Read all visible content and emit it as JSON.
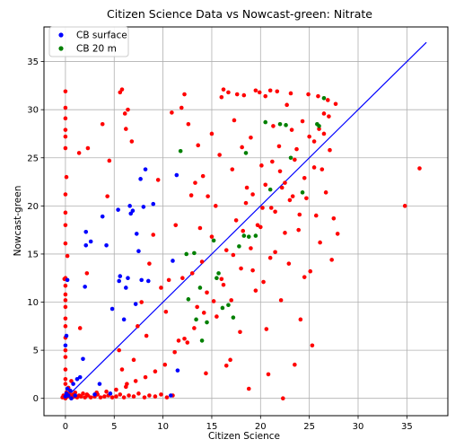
{
  "chart_data": {
    "type": "scatter",
    "title": "Citizen Science Data vs Nowcast-green: Nitrate",
    "xlabel": "Citizen Science",
    "ylabel": "Nowcast-green",
    "xlim": [
      -2.2,
      39.2
    ],
    "ylim": [
      -1.8,
      38.6
    ],
    "xticks": [
      0,
      5,
      10,
      15,
      20,
      25,
      30,
      35
    ],
    "yticks": [
      0,
      5,
      10,
      15,
      20,
      25,
      30,
      35
    ],
    "xtick_labels": [
      "0",
      "5",
      "10",
      "15",
      "20",
      "25",
      "30",
      "35"
    ],
    "ytick_labels": [
      "0",
      "5",
      "10",
      "15",
      "20",
      "25",
      "30",
      "35"
    ],
    "grid": true,
    "legend_position": "top-left",
    "series": [
      {
        "name": "CB surface",
        "color": "#0000ff",
        "marker": "dot",
        "points": [
          [
            0.0,
            0.2
          ],
          [
            0.1,
            0.5
          ],
          [
            0.2,
            1.0
          ],
          [
            0.3,
            0.3
          ],
          [
            0.5,
            0.8
          ],
          [
            0.0,
            5.5
          ],
          [
            0.1,
            6.5
          ],
          [
            0.2,
            12.3
          ],
          [
            0.8,
            1.5
          ],
          [
            1.0,
            0.3
          ],
          [
            1.5,
            2.2
          ],
          [
            1.8,
            4.1
          ],
          [
            2.0,
            11.6
          ],
          [
            2.1,
            15.9
          ],
          [
            2.1,
            17.3
          ],
          [
            2.6,
            16.3
          ],
          [
            3.0,
            0.4
          ],
          [
            3.8,
            18.9
          ],
          [
            4.2,
            15.9
          ],
          [
            4.6,
            0.5
          ],
          [
            5.4,
            19.6
          ],
          [
            5.5,
            12.2
          ],
          [
            5.6,
            12.7
          ],
          [
            6.2,
            11.5
          ],
          [
            6.4,
            12.5
          ],
          [
            6.7,
            19.2
          ],
          [
            6.9,
            19.5
          ],
          [
            6.6,
            20.0
          ],
          [
            7.3,
            17.1
          ],
          [
            7.5,
            15.3
          ],
          [
            7.7,
            22.8
          ],
          [
            7.8,
            12.3
          ],
          [
            8.0,
            19.9
          ],
          [
            8.2,
            23.8
          ],
          [
            8.5,
            12.2
          ],
          [
            9.0,
            20.2
          ],
          [
            10.8,
            0.3
          ],
          [
            11.0,
            14.3
          ],
          [
            11.4,
            23.2
          ],
          [
            11.5,
            2.9
          ],
          [
            7.2,
            9.8
          ],
          [
            6.0,
            8.2
          ],
          [
            4.8,
            9.3
          ],
          [
            3.5,
            1.5
          ],
          [
            0.6,
            0.0
          ],
          [
            1.2,
            2.0
          ]
        ]
      },
      {
        "name": "CB 20 m",
        "color": "#008000",
        "marker": "dot",
        "points": [
          [
            11.8,
            25.7
          ],
          [
            12.4,
            15.0
          ],
          [
            12.6,
            10.3
          ],
          [
            13.2,
            15.1
          ],
          [
            13.4,
            8.2
          ],
          [
            14.0,
            6.0
          ],
          [
            14.5,
            7.9
          ],
          [
            15.2,
            16.4
          ],
          [
            15.5,
            12.5
          ],
          [
            15.7,
            13.0
          ],
          [
            16.1,
            9.4
          ],
          [
            16.7,
            9.7
          ],
          [
            17.2,
            8.4
          ],
          [
            18.3,
            16.9
          ],
          [
            18.5,
            25.5
          ],
          [
            18.8,
            16.8
          ],
          [
            20.5,
            28.7
          ],
          [
            21.0,
            21.7
          ],
          [
            22.0,
            28.5
          ],
          [
            22.6,
            28.4
          ],
          [
            23.1,
            25.0
          ],
          [
            25.8,
            28.5
          ],
          [
            26.0,
            28.3
          ],
          [
            26.5,
            31.2
          ],
          [
            24.3,
            21.4
          ],
          [
            19.5,
            16.9
          ],
          [
            17.8,
            15.8
          ],
          [
            13.8,
            11.5
          ]
        ]
      },
      {
        "name": "",
        "color": "#ff0000",
        "marker": "dot",
        "points": [
          [
            -0.3,
            0.1
          ],
          [
            -0.2,
            0.3
          ],
          [
            0.0,
            0.0
          ],
          [
            0.1,
            0.6
          ],
          [
            0.2,
            0.2
          ],
          [
            0.3,
            1.1
          ],
          [
            0.4,
            0.5
          ],
          [
            0.5,
            0.2
          ],
          [
            0.6,
            1.8
          ],
          [
            0.7,
            0.1
          ],
          [
            0.8,
            0.4
          ],
          [
            0.9,
            0.2
          ],
          [
            1.0,
            0.6
          ],
          [
            1.2,
            0.1
          ],
          [
            1.4,
            0.3
          ],
          [
            1.6,
            0.2
          ],
          [
            1.8,
            0.5
          ],
          [
            2.0,
            0.1
          ],
          [
            2.3,
            0.3
          ],
          [
            2.6,
            0.1
          ],
          [
            3.0,
            0.2
          ],
          [
            3.3,
            0.4
          ],
          [
            3.6,
            0.1
          ],
          [
            4.0,
            0.2
          ],
          [
            4.4,
            0.3
          ],
          [
            4.8,
            0.1
          ],
          [
            5.2,
            0.2
          ],
          [
            5.6,
            0.4
          ],
          [
            6.0,
            0.1
          ],
          [
            6.5,
            0.3
          ],
          [
            7.0,
            0.2
          ],
          [
            7.5,
            0.5
          ],
          [
            8.1,
            0.1
          ],
          [
            8.6,
            0.3
          ],
          [
            9.2,
            0.2
          ],
          [
            9.8,
            0.4
          ],
          [
            10.4,
            0.1
          ],
          [
            11.0,
            0.3
          ],
          [
            0.0,
            1.5
          ],
          [
            0.0,
            2.0
          ],
          [
            0.0,
            3.0
          ],
          [
            0.0,
            4.3
          ],
          [
            0.0,
            5.0
          ],
          [
            0.0,
            6.3
          ],
          [
            0.0,
            7.5
          ],
          [
            0.0,
            8.3
          ],
          [
            0.0,
            9.5
          ],
          [
            0.0,
            10.2
          ],
          [
            0.0,
            10.8
          ],
          [
            0.0,
            11.7
          ],
          [
            0.0,
            12.5
          ],
          [
            0.0,
            16.1
          ],
          [
            0.0,
            18.0
          ],
          [
            0.0,
            19.3
          ],
          [
            0.0,
            21.2
          ],
          [
            0.0,
            26.0
          ],
          [
            0.0,
            27.2
          ],
          [
            0.0,
            27.9
          ],
          [
            0.0,
            29.1
          ],
          [
            0.0,
            30.2
          ],
          [
            0.0,
            31.9
          ],
          [
            -0.1,
            12.4
          ],
          [
            0.2,
            14.8
          ],
          [
            0.1,
            23.0
          ],
          [
            1.5,
            7.3
          ],
          [
            1.4,
            25.5
          ],
          [
            2.3,
            26.0
          ],
          [
            2.2,
            13.0
          ],
          [
            3.8,
            28.5
          ],
          [
            4.5,
            24.7
          ],
          [
            4.3,
            21.0
          ],
          [
            5.6,
            31.8
          ],
          [
            5.8,
            32.1
          ],
          [
            6.1,
            29.6
          ],
          [
            6.2,
            28.0
          ],
          [
            6.8,
            26.7
          ],
          [
            6.4,
            30.0
          ],
          [
            5.5,
            5.0
          ],
          [
            5.8,
            3.0
          ],
          [
            6.3,
            1.5
          ],
          [
            7.0,
            4.0
          ],
          [
            7.4,
            7.5
          ],
          [
            7.8,
            10.0
          ],
          [
            8.3,
            6.5
          ],
          [
            8.6,
            14.0
          ],
          [
            9.0,
            17.0
          ],
          [
            9.5,
            22.7
          ],
          [
            9.8,
            11.5
          ],
          [
            10.3,
            9.0
          ],
          [
            10.6,
            12.3
          ],
          [
            10.9,
            29.7
          ],
          [
            11.3,
            18.0
          ],
          [
            11.6,
            6.0
          ],
          [
            11.9,
            30.2
          ],
          [
            12.2,
            31.6
          ],
          [
            12.6,
            28.5
          ],
          [
            12.9,
            21.1
          ],
          [
            13.3,
            22.4
          ],
          [
            13.6,
            26.3
          ],
          [
            13.8,
            17.7
          ],
          [
            14.1,
            23.1
          ],
          [
            14.4,
            2.6
          ],
          [
            14.6,
            21.0
          ],
          [
            15.0,
            27.5
          ],
          [
            15.4,
            20.0
          ],
          [
            15.8,
            25.3
          ],
          [
            16.0,
            31.3
          ],
          [
            16.2,
            32.1
          ],
          [
            16.5,
            3.4
          ],
          [
            16.7,
            31.8
          ],
          [
            16.9,
            4.0
          ],
          [
            17.1,
            23.8
          ],
          [
            17.3,
            28.9
          ],
          [
            17.6,
            31.6
          ],
          [
            17.9,
            6.9
          ],
          [
            18.1,
            26.1
          ],
          [
            18.3,
            31.5
          ],
          [
            18.6,
            21.9
          ],
          [
            18.8,
            1.0
          ],
          [
            19.0,
            27.1
          ],
          [
            19.2,
            13.3
          ],
          [
            19.5,
            32.0
          ],
          [
            19.7,
            18.0
          ],
          [
            19.9,
            31.8
          ],
          [
            20.1,
            24.2
          ],
          [
            20.3,
            12.1
          ],
          [
            20.5,
            31.4
          ],
          [
            20.6,
            7.2
          ],
          [
            20.8,
            2.5
          ],
          [
            21.0,
            32.0
          ],
          [
            21.1,
            19.8
          ],
          [
            21.3,
            28.3
          ],
          [
            21.5,
            15.2
          ],
          [
            21.7,
            31.9
          ],
          [
            21.9,
            26.2
          ],
          [
            22.1,
            10.2
          ],
          [
            22.3,
            0.0
          ],
          [
            22.5,
            22.4
          ],
          [
            22.7,
            30.5
          ],
          [
            22.9,
            14.0
          ],
          [
            23.1,
            31.7
          ],
          [
            23.3,
            21.0
          ],
          [
            23.5,
            3.5
          ],
          [
            23.7,
            25.9
          ],
          [
            23.9,
            17.5
          ],
          [
            24.1,
            8.2
          ],
          [
            24.3,
            28.8
          ],
          [
            24.5,
            12.6
          ],
          [
            24.7,
            20.8
          ],
          [
            24.9,
            31.6
          ],
          [
            25.1,
            13.2
          ],
          [
            25.3,
            5.5
          ],
          [
            25.5,
            26.7
          ],
          [
            25.7,
            19.0
          ],
          [
            25.9,
            31.4
          ],
          [
            26.1,
            16.2
          ],
          [
            26.3,
            23.8
          ],
          [
            26.5,
            29.6
          ],
          [
            26.7,
            21.4
          ],
          [
            26.9,
            31.0
          ],
          [
            27.1,
            25.8
          ],
          [
            27.3,
            14.4
          ],
          [
            27.5,
            18.7
          ],
          [
            27.7,
            30.6
          ],
          [
            27.9,
            17.1
          ],
          [
            34.8,
            20.0
          ],
          [
            36.3,
            23.9
          ],
          [
            12.0,
            12.5
          ],
          [
            12.5,
            5.8
          ],
          [
            13.0,
            13.0
          ],
          [
            13.5,
            9.5
          ],
          [
            14.0,
            14.2
          ],
          [
            14.5,
            11.0
          ],
          [
            15.0,
            16.8
          ],
          [
            15.5,
            8.5
          ],
          [
            16.0,
            12.4
          ],
          [
            16.5,
            15.4
          ],
          [
            17.0,
            10.2
          ],
          [
            17.5,
            18.5
          ],
          [
            18.0,
            13.5
          ],
          [
            18.5,
            20.3
          ],
          [
            19.0,
            15.6
          ],
          [
            19.5,
            11.2
          ],
          [
            20.0,
            17.8
          ],
          [
            20.5,
            22.2
          ],
          [
            21.0,
            14.6
          ],
          [
            21.5,
            19.4
          ],
          [
            22.0,
            23.6
          ],
          [
            22.5,
            17.2
          ],
          [
            23.0,
            20.6
          ],
          [
            23.5,
            24.8
          ],
          [
            24.0,
            19.1
          ],
          [
            24.5,
            22.9
          ],
          [
            25.0,
            27.2
          ],
          [
            25.5,
            24.0
          ],
          [
            26.0,
            28.0
          ],
          [
            26.5,
            27.5
          ],
          [
            27.0,
            29.3
          ],
          [
            19.2,
            21.2
          ],
          [
            20.2,
            19.8
          ],
          [
            21.2,
            24.6
          ],
          [
            22.2,
            21.9
          ],
          [
            23.2,
            27.9
          ],
          [
            18.2,
            17.4
          ],
          [
            17.2,
            14.9
          ],
          [
            16.2,
            11.8
          ],
          [
            15.2,
            10.1
          ],
          [
            14.2,
            8.9
          ],
          [
            13.2,
            7.3
          ],
          [
            12.2,
            6.2
          ],
          [
            11.2,
            4.8
          ],
          [
            10.2,
            3.5
          ],
          [
            9.2,
            2.8
          ],
          [
            8.2,
            2.2
          ],
          [
            7.2,
            1.8
          ],
          [
            6.2,
            1.2
          ],
          [
            5.2,
            0.9
          ],
          [
            4.2,
            0.7
          ],
          [
            3.2,
            0.6
          ],
          [
            2.2,
            0.4
          ]
        ]
      }
    ],
    "reference_line": {
      "color": "#0000ff",
      "from": [
        0.0,
        0.0
      ],
      "to": [
        37.0,
        37.0
      ]
    }
  }
}
